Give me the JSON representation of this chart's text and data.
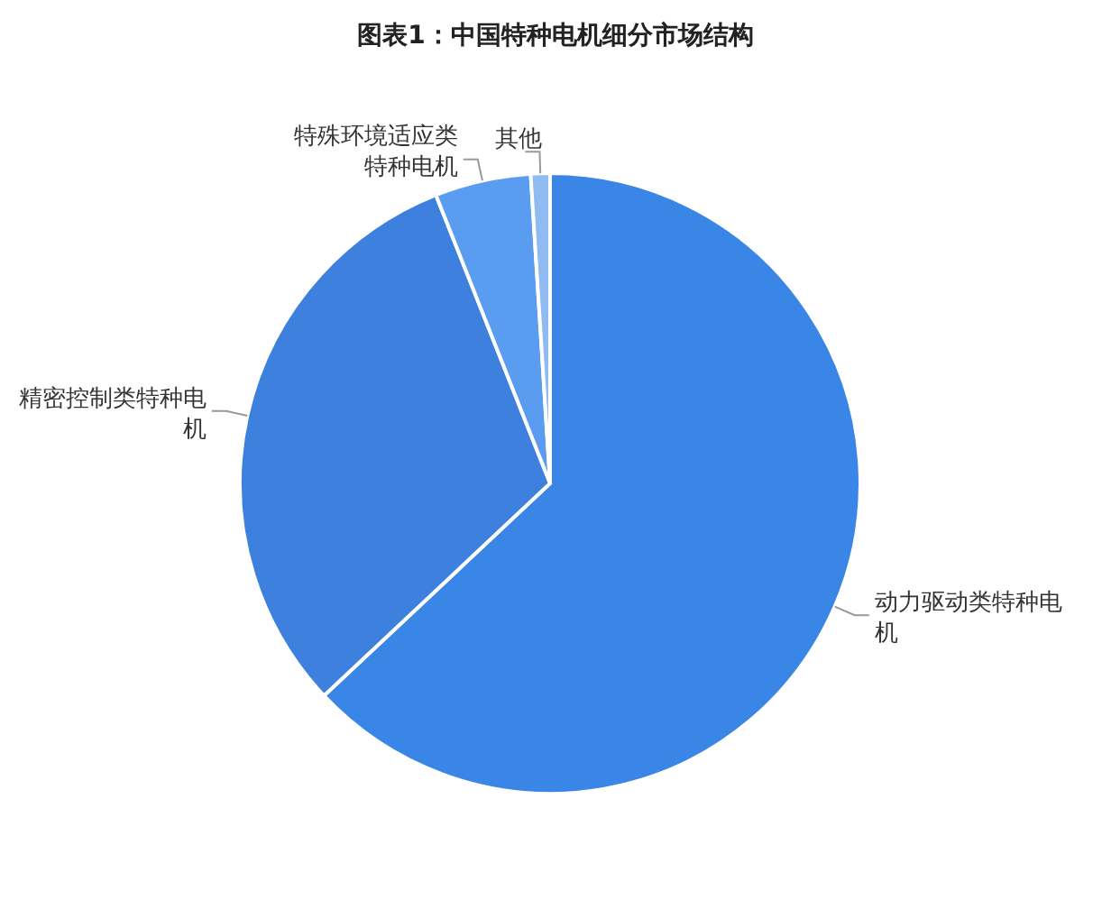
{
  "chart_data": {
    "type": "pie",
    "title": "图表1：中国特种电机细分市场结构",
    "categories": [
      "动力驱动类特种电机",
      "精密控制类特种电机",
      "特殊环境适应类特种电机",
      "其他"
    ],
    "values": [
      63,
      31,
      5,
      1
    ],
    "colors": [
      "#3a86e6",
      "#3d80de",
      "#5a9cf0",
      "#8fbaf2"
    ]
  }
}
